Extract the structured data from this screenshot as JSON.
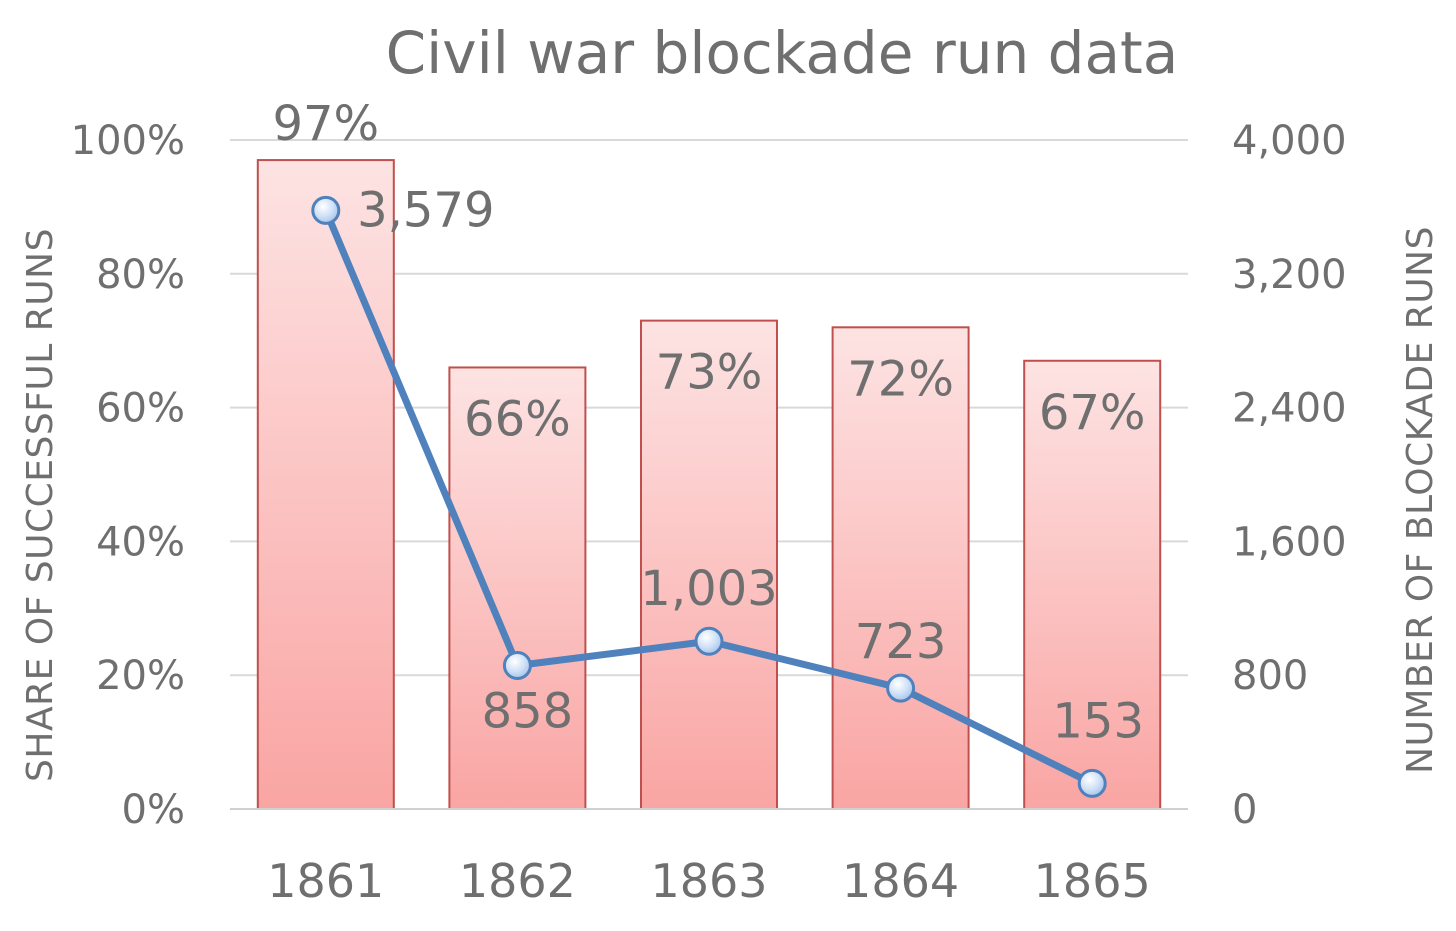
{
  "chart_data": {
    "type": "bar",
    "title": "Civil war blockade run data",
    "categories": [
      "1861",
      "1862",
      "1863",
      "1864",
      "1865"
    ],
    "series": [
      {
        "values": [
          97,
          66,
          73,
          72,
          67
        ],
        "value_labels": [
          "97%",
          "66%",
          "73%",
          "72%",
          "67%"
        ],
        "axis": "left",
        "render": "bar",
        "color": "#f4a9a8"
      },
      {
        "values": [
          3579,
          858,
          1003,
          723,
          153
        ],
        "value_labels": [
          "3,579",
          "858",
          "1,003",
          "723",
          "153"
        ],
        "axis": "right",
        "render": "line",
        "color": "#4f81bd"
      }
    ],
    "y_left": {
      "label": "SHARE OF SUCCESSFUL  RUNS",
      "ylim": [
        0,
        100
      ],
      "ticks": [
        0,
        20,
        40,
        60,
        80,
        100
      ],
      "tick_labels": [
        "0%",
        "20%",
        "40%",
        "60%",
        "80%",
        "100%"
      ]
    },
    "y_right": {
      "label": "NUMBER OF BLOCKADE RUNS",
      "ylim": [
        0,
        4000
      ],
      "ticks": [
        0,
        800,
        1600,
        2400,
        3200,
        4000
      ],
      "tick_labels": [
        "0",
        "800",
        "1,600",
        "2,400",
        "3,200",
        "4,000"
      ]
    },
    "grid": true,
    "legend": "none"
  }
}
